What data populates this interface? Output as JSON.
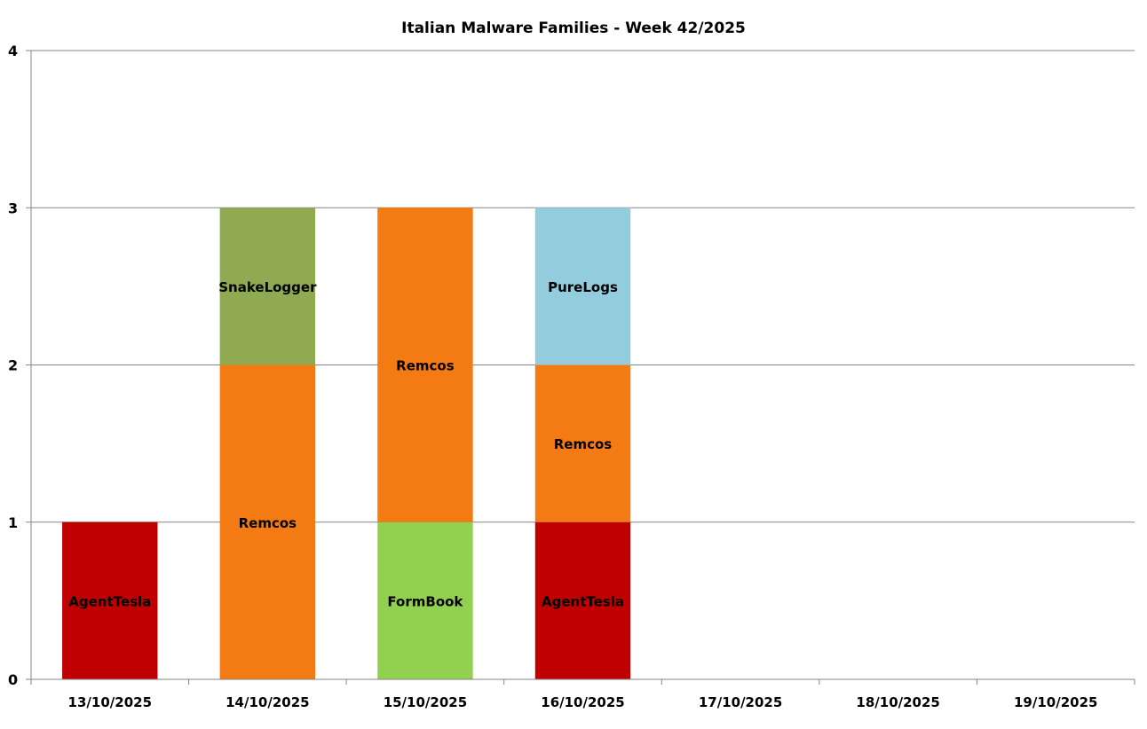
{
  "chart_data": {
    "type": "bar",
    "stacked": true,
    "title": "Italian Malware Families - Week 42/2025",
    "xlabel": "",
    "ylabel": "",
    "ylim": [
      0,
      4
    ],
    "yticks": [
      "0",
      "1",
      "2",
      "3",
      "4"
    ],
    "grid": true,
    "legend": "none",
    "categories": [
      "13/10/2025",
      "14/10/2025",
      "15/10/2025",
      "16/10/2025",
      "17/10/2025",
      "18/10/2025",
      "19/10/2025"
    ],
    "stacks": [
      [
        {
          "name": "AgentTesla",
          "value": 1
        }
      ],
      [
        {
          "name": "Remcos",
          "value": 2
        },
        {
          "name": "SnakeLogger",
          "value": 1
        }
      ],
      [
        {
          "name": "FormBook",
          "value": 1
        },
        {
          "name": "Remcos",
          "value": 2
        }
      ],
      [
        {
          "name": "AgentTesla",
          "value": 1
        },
        {
          "name": "Remcos",
          "value": 1
        },
        {
          "name": "PureLogs",
          "value": 1
        }
      ],
      [],
      [],
      []
    ],
    "colors": {
      "AgentTesla": "#C00000",
      "Remcos": "#F47A14",
      "SnakeLogger": "#8FAA50",
      "FormBook": "#92D050",
      "PureLogs": "#93CDDD"
    }
  }
}
